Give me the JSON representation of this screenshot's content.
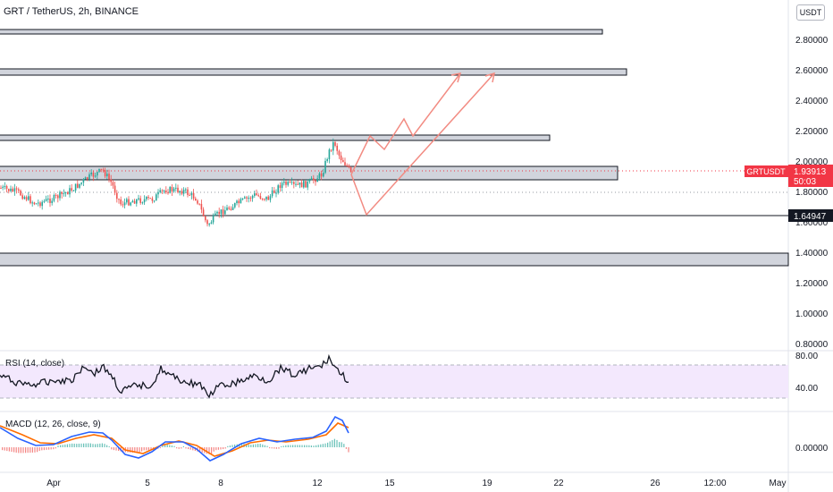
{
  "header": {
    "symbol_title": "GRT / TetherUS, 2h, BINANCE",
    "currency": "USDT"
  },
  "price_axis": {
    "ticks": [
      "2.80000",
      "2.60000",
      "2.40000",
      "2.20000",
      "2.00000",
      "1.80000",
      "1.60000",
      "1.40000",
      "1.20000",
      "1.00000",
      "0.80000"
    ]
  },
  "markers": {
    "last_price_symbol": "GRTUSDT",
    "last_price": "1.93913",
    "countdown": "50:03",
    "level_label": "1.64947"
  },
  "rsi": {
    "label": "RSI (14, close)",
    "ticks": [
      "80.00",
      "40.00"
    ]
  },
  "macd": {
    "label": "MACD (12, 26, close, 9)",
    "ticks": [
      "0.00000"
    ]
  },
  "time_axis": {
    "ticks": [
      "Apr",
      "5",
      "8",
      "12",
      "15",
      "19",
      "22",
      "26",
      "12:00",
      "May"
    ]
  },
  "colors": {
    "up": "#26a69a",
    "down": "#ef5350",
    "price_tag": "#f23645",
    "macd_line": "#2962ff",
    "signal_line": "#ff6d00",
    "rsi_band": "#f3e8fd",
    "drawing": "#f28b82"
  },
  "chart_data": {
    "type": "candlestick",
    "title": "GRT / TetherUS, 2h, BINANCE",
    "y_range": [
      0.75,
      2.95
    ],
    "last_price": 1.93913,
    "support_resistance_zones": [
      [
        2.84,
        2.86
      ],
      [
        2.56,
        2.59
      ],
      [
        2.12,
        2.16
      ],
      [
        1.88,
        1.95
      ],
      [
        1.65,
        1.65
      ],
      [
        1.33,
        1.4
      ]
    ],
    "rsi_range": [
      40,
      80
    ],
    "macd_zero": 0
  }
}
